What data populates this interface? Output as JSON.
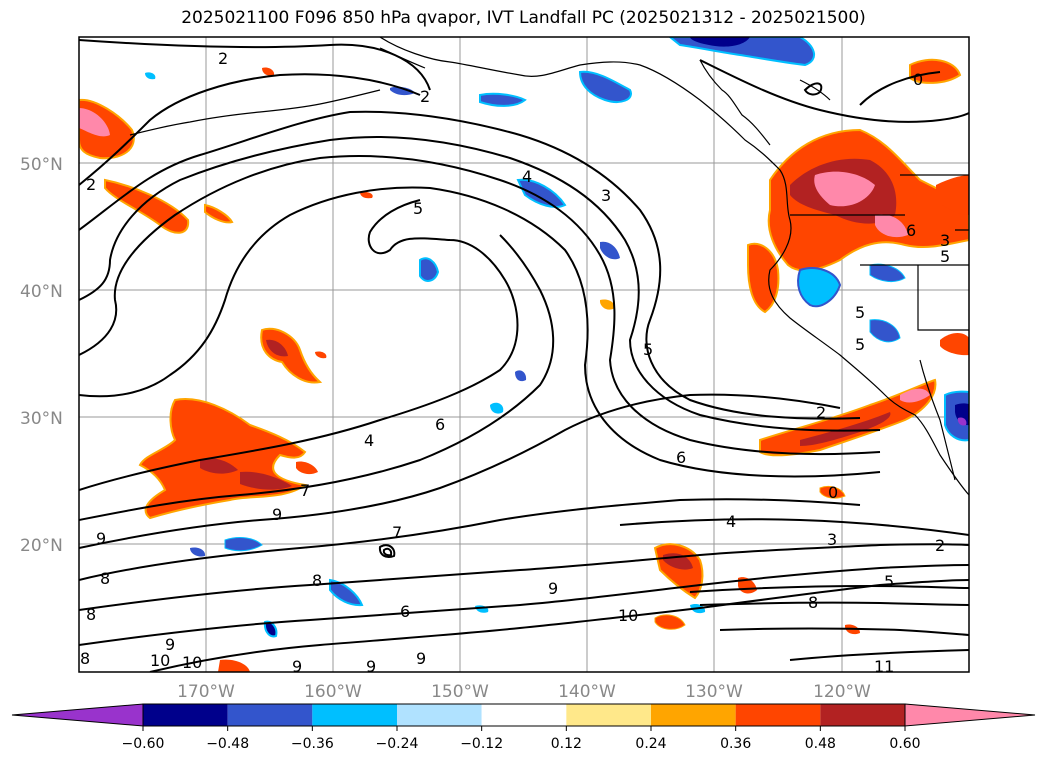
{
  "title": "2025021100 F096 850 hPa qvapor, IVT Landfall PC (2025021312 - 2025021500)",
  "map": {
    "lat_labels": [
      "50°N",
      "40°N",
      "30°N",
      "20°N"
    ],
    "lon_labels": [
      "170°W",
      "160°W",
      "150°W",
      "140°W",
      "130°W",
      "120°W"
    ],
    "contour_labels": [
      "2",
      "2",
      "2",
      "0",
      "4",
      "3",
      "5",
      "5",
      "5",
      "5",
      "6",
      "6",
      "2",
      "7",
      "9",
      "9",
      "9",
      "6",
      "4",
      "3",
      "2",
      "5",
      "8",
      "10",
      "10",
      "9",
      "9",
      "9",
      "8",
      "8",
      "8",
      "11",
      "7",
      "3",
      "4",
      "5",
      "6",
      "8",
      "9",
      "10",
      "0"
    ]
  },
  "colorbar": {
    "ticks": [
      "−0.60",
      "−0.48",
      "−0.36",
      "−0.24",
      "−0.12",
      "0.12",
      "0.24",
      "0.36",
      "0.48",
      "0.60"
    ],
    "colors": [
      "#9933cc",
      "#00008b",
      "#3355cc",
      "#00bfff",
      "#b0e2ff",
      "#ffffff",
      "#ffe88a",
      "#ffa500",
      "#ff4500",
      "#b22222",
      "#ff88aa"
    ]
  }
}
